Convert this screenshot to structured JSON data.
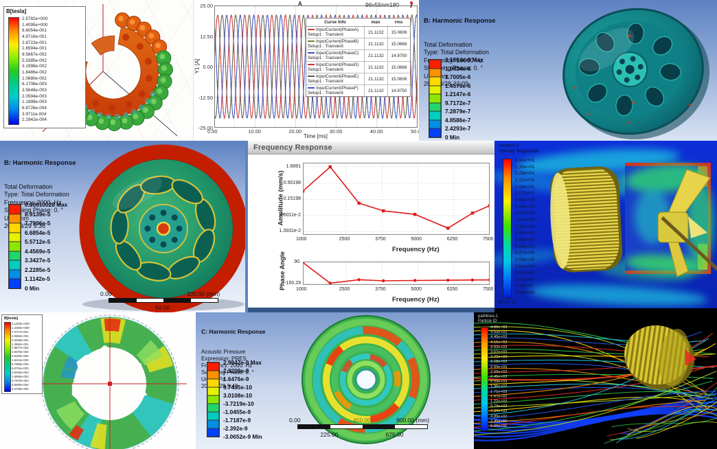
{
  "panels": {
    "maxwell_segment": {
      "legend_title": "B[tesla]",
      "legend_values": [
        "2.5782e+000",
        "1.4095e+000",
        "8.6054e-001",
        "4.9716e-001",
        "2.8722e-001",
        "1.6594e-001",
        "9.5867e-002",
        "5.5385e-002",
        "3.1998e-002",
        "1.8486e-002",
        "1.0680e-002",
        "6.1708e-003",
        "3.5646e-003",
        "2.0594e-003",
        "1.1898e-003",
        "6.8726e-004",
        "3.9711e-004",
        "2.2942e-004"
      ]
    },
    "xy_plot": {
      "corner_label": "A",
      "model_label": "96v55nm180",
      "y_axis_label": "Y1 [A]",
      "x_axis_label": "Time [ms]",
      "y_ticks": [
        "25.00",
        "12.50",
        "0.00",
        "-12.50",
        "-25.00"
      ],
      "x_ticks": [
        "0.00",
        "10.00",
        "20.00",
        "30.00",
        "40.00",
        "50.00"
      ],
      "table": {
        "headers": [
          "Curve Info",
          "max",
          "rms"
        ],
        "rows": [
          {
            "name": "InputCurrent(PhaseA)",
            "setup": "Setup1 : Transient",
            "max": "21.1132",
            "rms": "15.0606",
            "color": "#cc3333"
          },
          {
            "name": "InputCurrent(PhaseB)",
            "setup": "Setup1 : Transient",
            "max": "21.1132",
            "rms": "15.0668",
            "color": "#7a7a2a"
          },
          {
            "name": "InputCurrent(PhaseC)",
            "setup": "Setup1 : Transient",
            "max": "21.1132",
            "rms": "14.8750",
            "color": "#3b4fc0"
          },
          {
            "name": "InputCurrent(PhaseD)",
            "setup": "Setup1 : Transient",
            "max": "21.1132",
            "rms": "15.0668",
            "color": "#cc3333"
          },
          {
            "name": "InputCurrent(PhaseE)",
            "setup": "Setup1 : Transient",
            "max": "21.1132",
            "rms": "15.0606",
            "color": "#555555"
          },
          {
            "name": "InputCurrent(PhaseF)",
            "setup": "Setup1 : Transient",
            "max": "21.1132",
            "rms": "14.8750",
            "color": "#3b4fc0"
          }
        ]
      }
    },
    "harmonic_10000": {
      "title": "B: Harmonic Response",
      "lines": [
        "Total Deformation",
        "Type: Total Deformation",
        "Frequency: 10000 Hz",
        "Sweeping Phase: 0. °",
        "Unit: mm",
        "2018/3/28 22:09"
      ],
      "legend_values": [
        "2.1864e-6 Max",
        "1.9434e-6",
        "1.7005e-6",
        "1.4576e-6",
        "1.2147e-6",
        "9.7172e-7",
        "7.2879e-7",
        "4.8586e-7",
        "2.4293e-7",
        "0 Min"
      ]
    },
    "harmonic_2000": {
      "title": "B: Harmonic Response",
      "lines": [
        "Total Deformation",
        "Type: Total Deformation",
        "Frequency: 2000. Hz",
        "Sweeping Phase: 0. °",
        "Unit: mm",
        "2018/3/29 9:36"
      ],
      "legend_values": [
        "0.00010028 Max",
        "8.9139e-5",
        "7.7996e-5",
        "6.6854e-5",
        "5.5712e-5",
        "4.4569e-5",
        "3.3427e-5",
        "2.2285e-5",
        "1.1142e-5",
        "0 Min"
      ],
      "ruler": {
        "start": "0.00",
        "end": "100.00 (mm)",
        "mid": "50.00"
      }
    },
    "freq_response": {
      "window_title": "Frequency Response",
      "amplitude": {
        "ylabel": "Amplitude (mm/s)",
        "y_ticks": [
          "1.6881",
          "0.50198",
          "0.15198",
          "4.6011e-2",
          "1.3931e-2"
        ],
        "x_ticks": [
          "1000",
          "2500",
          "3750",
          "5000",
          "6250",
          "7500"
        ],
        "xlabel": "Frequency (Hz)"
      },
      "phase": {
        "ylabel": "Phase Angle",
        "y_ticks": [
          "90.",
          "-150.29"
        ],
        "x_ticks": [
          "1000",
          "2500",
          "3750",
          "5000",
          "6250",
          "7500"
        ],
        "xlabel": "Frequency (Hz)"
      }
    },
    "cfd_velocity": {
      "title_lines": [
        "contour-2",
        "Velocity Magnitude"
      ],
      "values": [
        "1.42e+01",
        "1.35e+01",
        "1.28e+01",
        "1.21e+01",
        "1.14e+01",
        "1.07e+01",
        "9.95e+00",
        "9.24e+00",
        "8.53e+00",
        "7.82e+00",
        "7.11e+00",
        "6.40e+00",
        "5.69e+00",
        "4.98e+00",
        "4.27e+00",
        "3.56e+00",
        "2.84e+00",
        "2.13e+00",
        "1.42e+00",
        "7.11e-01",
        "0.00e+00"
      ],
      "unit": "[m s^-1]"
    },
    "maxwell_rotor": {
      "legend_title": "B[tesla]",
      "legend_values": [
        "2.1203e+000",
        "1.2250e+000",
        "7.0777e-001",
        "4.0894e-001",
        "2.3628e-001",
        "1.3652e-001",
        "7.8877e-002",
        "4.5575e-002",
        "2.6333e-002",
        "1.5214e-002",
        "8.7905e-003",
        "5.0791e-003",
        "2.9346e-003",
        "1.6956e-003",
        "9.7970e-004",
        "5.6606e-004",
        "3.2705e-004"
      ]
    },
    "acoustic": {
      "title": "C: Harmonic Response",
      "lines": [
        "Acoustic Pressure",
        "Expression: PRES",
        "Frequency: 2000. Hz",
        "Sweeping Phase: 0. °",
        "Unit: MPa",
        "2018/3/29 9:43"
      ],
      "legend_values": [
        "2.9942e-9 Max",
        "2.3209e-9",
        "1.6476e-9",
        "9.7435e-10",
        "3.0108e-10",
        "-3.7219e-10",
        "-1.0455e-9",
        "-1.7187e-9",
        "-2.392e-9",
        "-3.0652e-9 Min"
      ],
      "ruler": {
        "start": "0.00",
        "mid_top": "450.00",
        "end": "900.00 (mm)",
        "q1": "225.00",
        "q3": "675.00"
      }
    },
    "pathlines": {
      "title_lines": [
        "pathlines-1",
        "Particle ID"
      ],
      "values": [
        "4.89e+03",
        "4.65e+03",
        "4.40e+03",
        "4.16e+03",
        "3.92e+03",
        "3.67e+03",
        "3.43e+03",
        "3.18e+03",
        "2.94e+03",
        "2.69e+03",
        "2.45e+03",
        "2.20e+03",
        "1.96e+03",
        "1.71e+03",
        "1.47e+03",
        "1.22e+03",
        "9.79e+02",
        "7.34e+02",
        "4.89e+02",
        "2.45e+02",
        "0.00e+00"
      ]
    }
  },
  "colors": {
    "ansys_bands": [
      "#ff1e00",
      "#ff9000",
      "#ffd800",
      "#e4f300",
      "#8ce800",
      "#21d66a",
      "#00ccc0",
      "#0090e4",
      "#0040ff"
    ],
    "freq_line": "#e01818",
    "accent_red": "#cc2020"
  },
  "chart_data": [
    {
      "type": "line",
      "title": "A",
      "subtitle": "96v55nm180",
      "xlabel": "Time [ms]",
      "ylabel": "Y1 [A]",
      "xlim": [
        0,
        50
      ],
      "ylim": [
        -25,
        25
      ],
      "x_ticks": [
        0,
        10,
        20,
        30,
        40,
        50
      ],
      "y_ticks": [
        25,
        12.5,
        0,
        -12.5,
        -25
      ],
      "wave_amplitude": 21.1132,
      "wave_period_ms": 3.3333,
      "legend_position": "upper right overlay",
      "series": [
        {
          "name": "InputCurrent(PhaseA)",
          "phase_deg": 0,
          "color": "#cc3333",
          "max": 21.1132,
          "rms": 15.0606
        },
        {
          "name": "InputCurrent(PhaseB)",
          "phase_deg": -120,
          "color": "#7a7a2a",
          "max": 21.1132,
          "rms": 15.0668
        },
        {
          "name": "InputCurrent(PhaseC)",
          "phase_deg": -240,
          "color": "#3b4fc0",
          "max": 21.1132,
          "rms": 14.875
        },
        {
          "name": "InputCurrent(PhaseD)",
          "phase_deg": 0,
          "color": "#cc3333",
          "max": 21.1132,
          "rms": 15.0668
        },
        {
          "name": "InputCurrent(PhaseE)",
          "phase_deg": -120,
          "color": "#555555",
          "max": 21.1132,
          "rms": 15.0606
        },
        {
          "name": "InputCurrent(PhaseF)",
          "phase_deg": -240,
          "color": "#3b4fc0",
          "max": 21.1132,
          "rms": 14.875
        }
      ]
    },
    {
      "type": "line",
      "title": "Frequency Response - Amplitude",
      "xlabel": "Frequency (Hz)",
      "ylabel": "Amplitude (mm/s)",
      "yscale": "log",
      "xlim": [
        1000,
        7500
      ],
      "ylim": [
        0.011,
        2.3
      ],
      "x": [
        1000,
        1950,
        2950,
        3800,
        4900,
        6050,
        6900,
        7500
      ],
      "y": [
        0.28,
        1.6881,
        0.115,
        0.065,
        0.05,
        0.018,
        0.055,
        0.095
      ],
      "y_tick_labels": [
        "1.6881",
        "0.50198",
        "0.15198",
        "4.6011e-2",
        "1.3931e-2"
      ],
      "x_tick_labels": [
        "1000",
        "2500",
        "3750",
        "5000",
        "6250",
        "7500"
      ]
    },
    {
      "type": "line",
      "title": "Frequency Response - Phase Angle",
      "xlabel": "Frequency (Hz)",
      "ylabel": "Phase Angle",
      "xlim": [
        1000,
        7500
      ],
      "ylim": [
        -170,
        100
      ],
      "x": [
        1000,
        1950,
        2950,
        3800,
        4900,
        6050,
        6900,
        7500
      ],
      "y": [
        90,
        -150,
        -110,
        -122,
        -118,
        -116,
        -113,
        -112
      ],
      "y_tick_labels": [
        "90.",
        "-150.29"
      ],
      "x_tick_labels": [
        "1000",
        "2500",
        "3750",
        "5000",
        "6250",
        "7500"
      ]
    }
  ]
}
